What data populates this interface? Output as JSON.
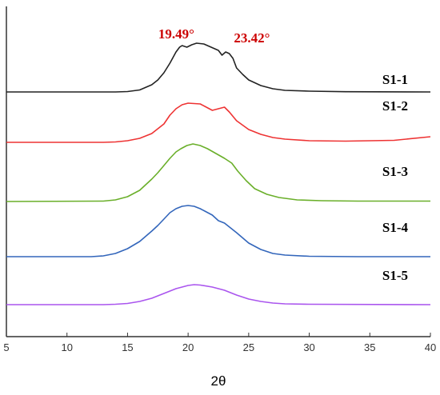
{
  "chart_data": {
    "type": "line",
    "xlabel": "2θ",
    "xlim": [
      5,
      40
    ],
    "x_ticks": [
      5,
      10,
      15,
      20,
      25,
      30,
      35,
      40
    ],
    "y_ticks_visible": false,
    "grid": false,
    "annotations": [
      {
        "text": "19.49°",
        "x": 19.49,
        "color": "#cc0000"
      },
      {
        "text": "23.42°",
        "x": 23.42,
        "color": "#cc0000"
      }
    ],
    "series": [
      {
        "name": "S1-1",
        "color": "#222222",
        "baseline": 0,
        "x": [
          5,
          14,
          15,
          16,
          17,
          17.5,
          18,
          18.5,
          19,
          19.3,
          19.5,
          19.9,
          20.3,
          20.7,
          21.3,
          21.9,
          22.5,
          22.8,
          23.1,
          23.4,
          23.7,
          24,
          24.5,
          25,
          26,
          27,
          28,
          30,
          33,
          40
        ],
        "y": [
          0,
          0,
          0.5,
          2.5,
          9,
          15,
          24,
          36,
          50,
          56,
          58,
          56,
          59,
          61,
          60,
          56,
          52,
          46,
          50,
          48,
          42,
          30,
          22,
          15,
          8,
          4,
          2,
          1,
          0.3,
          0
        ]
      },
      {
        "name": "S1-2",
        "color": "#ee3333",
        "baseline": 0,
        "x": [
          5,
          13,
          14,
          15,
          16,
          17,
          18,
          18.5,
          19,
          19.5,
          20,
          21,
          22,
          22.5,
          23,
          23.4,
          24,
          25,
          26,
          27,
          28,
          30,
          33,
          37,
          40
        ],
        "y": [
          0,
          0,
          0.5,
          2,
          5,
          11,
          23,
          34,
          42,
          47,
          49,
          48,
          40,
          42,
          44,
          38,
          27,
          16,
          10,
          6,
          4,
          2,
          1.5,
          2.5,
          7
        ]
      },
      {
        "name": "S1-3",
        "color": "#6aaf2a",
        "baseline": 0,
        "x": [
          5,
          13,
          14,
          15,
          16,
          17,
          17.5,
          18,
          18.5,
          19,
          19.4,
          19.9,
          20.4,
          21,
          21.6,
          22.3,
          23,
          23.6,
          24.1,
          24.8,
          25.5,
          26.5,
          27.5,
          29,
          31,
          34,
          40
        ],
        "y": [
          0,
          0.5,
          2,
          6,
          14,
          28,
          36,
          45,
          54,
          62,
          66,
          70,
          72,
          70,
          66,
          60,
          54,
          48,
          38,
          26,
          16,
          9,
          5,
          2,
          1,
          0.5,
          0.5
        ]
      },
      {
        "name": "S1-4",
        "color": "#3366bb",
        "baseline": 0,
        "x": [
          5,
          12,
          13,
          14,
          15,
          16,
          17,
          17.5,
          18,
          18.5,
          19,
          19.5,
          20,
          20.5,
          21,
          22,
          22.5,
          23,
          24,
          25,
          26,
          27,
          28,
          30,
          34,
          40
        ],
        "y": [
          0,
          0,
          1,
          4,
          10,
          19,
          32,
          39,
          47,
          55,
          60,
          63,
          64,
          63,
          60,
          52,
          45,
          42,
          30,
          17,
          9,
          4,
          2,
          0.5,
          0,
          0
        ]
      },
      {
        "name": "S1-5",
        "color": "#aa55ee",
        "baseline": 0,
        "x": [
          5,
          13,
          14,
          15,
          16,
          17,
          18,
          19,
          20,
          20.5,
          21,
          22,
          23,
          24,
          25,
          26,
          27,
          28,
          30,
          40
        ],
        "y": [
          0,
          0,
          0.5,
          1.5,
          4,
          8,
          14,
          20,
          24,
          25,
          24.5,
          22,
          18,
          12,
          7,
          4,
          2,
          1,
          0.5,
          0
        ]
      }
    ]
  }
}
